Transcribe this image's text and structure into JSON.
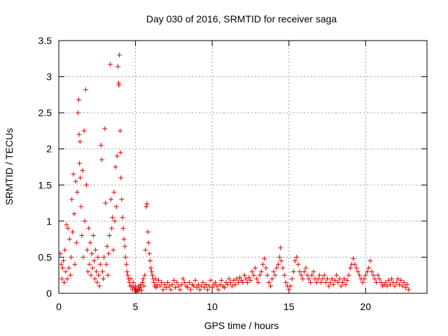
{
  "chart_data": {
    "type": "scatter",
    "title": "Day 030 of 2016, SRMTID for receiver saga",
    "xlabel": "GPS time / hours",
    "ylabel": "SRMTID / TECUs",
    "xlim": [
      0,
      24
    ],
    "ylim": [
      0,
      3.5
    ],
    "xticks": [
      0,
      5,
      10,
      15,
      20
    ],
    "yticks": [
      0,
      0.5,
      1,
      1.5,
      2,
      2.5,
      3,
      3.5
    ],
    "xtick_labels": [
      "0",
      "5",
      "10",
      "15",
      "20"
    ],
    "ytick_labels": [
      "0",
      "0.5",
      "1",
      "1.5",
      "2",
      "2.5",
      "3",
      "3.5"
    ],
    "grid": true,
    "marker": "+",
    "marker_color": "#e00000",
    "series": [
      {
        "name": "SRMTID",
        "points": [
          [
            0.1,
            0.55
          ],
          [
            0.15,
            0.4
          ],
          [
            0.2,
            0.2
          ],
          [
            0.25,
            0.35
          ],
          [
            0.3,
            0.45
          ],
          [
            0.35,
            0.15
          ],
          [
            0.4,
            0.6
          ],
          [
            0.45,
            0.3
          ],
          [
            0.5,
            0.95
          ],
          [
            0.55,
            0.2
          ],
          [
            0.6,
            0.9
          ],
          [
            0.65,
            0.35
          ],
          [
            0.7,
            0.75
          ],
          [
            0.75,
            0.25
          ],
          [
            0.8,
            0.5
          ],
          [
            0.85,
            1.3
          ],
          [
            0.9,
            0.85
          ],
          [
            0.95,
            1.65
          ],
          [
            1.0,
            1.1
          ],
          [
            1.05,
            0.4
          ],
          [
            1.1,
            1.55
          ],
          [
            1.15,
            0.7
          ],
          [
            1.2,
            1.4
          ],
          [
            1.25,
            2.5
          ],
          [
            1.3,
            2.68
          ],
          [
            1.32,
            2.2
          ],
          [
            1.35,
            1.8
          ],
          [
            1.38,
            2.1
          ],
          [
            1.4,
            1.6
          ],
          [
            1.45,
            1.2
          ],
          [
            1.5,
            0.8
          ],
          [
            1.55,
            1.7
          ],
          [
            1.6,
            0.5
          ],
          [
            1.65,
            2.25
          ],
          [
            1.7,
            1.0
          ],
          [
            1.75,
            2.82
          ],
          [
            1.8,
            1.5
          ],
          [
            1.85,
            0.6
          ],
          [
            1.9,
            0.3
          ],
          [
            1.95,
            0.9
          ],
          [
            2.0,
            0.4
          ],
          [
            2.05,
            0.7
          ],
          [
            2.1,
            0.25
          ],
          [
            2.15,
            0.55
          ],
          [
            2.2,
            0.35
          ],
          [
            2.25,
            0.8
          ],
          [
            2.3,
            0.45
          ],
          [
            2.35,
            0.2
          ],
          [
            2.4,
            0.6
          ],
          [
            2.45,
            0.3
          ],
          [
            2.5,
            0.15
          ],
          [
            2.55,
            0.5
          ],
          [
            2.6,
            0.25
          ],
          [
            2.65,
            0.1
          ],
          [
            2.7,
            0.4
          ],
          [
            2.75,
            2.05
          ],
          [
            2.8,
            1.85
          ],
          [
            2.85,
            0.3
          ],
          [
            2.9,
            0.2
          ],
          [
            2.95,
            0.5
          ],
          [
            3.0,
            2.28
          ],
          [
            3.05,
            1.25
          ],
          [
            3.1,
            0.4
          ],
          [
            3.15,
            0.65
          ],
          [
            3.2,
            0.25
          ],
          [
            3.25,
            0.55
          ],
          [
            3.3,
            0.8
          ],
          [
            3.35,
            3.17
          ],
          [
            3.4,
            1.3
          ],
          [
            3.45,
            0.9
          ],
          [
            3.5,
            1.05
          ],
          [
            3.55,
            0.6
          ],
          [
            3.6,
            1.4
          ],
          [
            3.65,
            1.0
          ],
          [
            3.7,
            1.75
          ],
          [
            3.75,
            1.2
          ],
          [
            3.8,
            1.9
          ],
          [
            3.85,
            3.14
          ],
          [
            3.9,
            2.91
          ],
          [
            3.92,
            2.88
          ],
          [
            3.95,
            3.3
          ],
          [
            4.0,
            2.25
          ],
          [
            4.02,
            1.95
          ],
          [
            4.05,
            1.6
          ],
          [
            4.1,
            1.3
          ],
          [
            4.15,
            1.05
          ],
          [
            4.2,
            0.9
          ],
          [
            4.25,
            0.75
          ],
          [
            4.3,
            0.65
          ],
          [
            4.35,
            0.5
          ],
          [
            4.4,
            0.4
          ],
          [
            4.45,
            0.3
          ],
          [
            4.5,
            0.25
          ],
          [
            4.55,
            0.2
          ],
          [
            4.6,
            0.15
          ],
          [
            4.65,
            0.1
          ],
          [
            4.7,
            0.2
          ],
          [
            4.75,
            0.1
          ],
          [
            4.8,
            0.05
          ],
          [
            4.85,
            0.15
          ],
          [
            4.9,
            0.08
          ],
          [
            4.95,
            0.05
          ],
          [
            5.0,
            0.1
          ],
          [
            5.05,
            0.02
          ],
          [
            5.1,
            0.06
          ],
          [
            5.15,
            0.03
          ],
          [
            5.2,
            0.1
          ],
          [
            5.25,
            0.05
          ],
          [
            5.3,
            0.08
          ],
          [
            5.35,
            0.12
          ],
          [
            5.4,
            0.04
          ],
          [
            5.45,
            0.15
          ],
          [
            5.5,
            0.2
          ],
          [
            5.55,
            0.1
          ],
          [
            5.6,
            0.25
          ],
          [
            5.65,
            0.6
          ],
          [
            5.7,
            1.2
          ],
          [
            5.75,
            1.24
          ],
          [
            5.8,
            0.85
          ],
          [
            5.85,
            0.7
          ],
          [
            5.9,
            0.55
          ],
          [
            5.95,
            0.45
          ],
          [
            6.0,
            0.35
          ],
          [
            6.05,
            0.3
          ],
          [
            6.1,
            0.25
          ],
          [
            6.15,
            0.2
          ],
          [
            6.2,
            0.15
          ],
          [
            6.25,
            0.1
          ],
          [
            6.3,
            0.2
          ],
          [
            6.35,
            0.08
          ],
          [
            6.4,
            0.12
          ],
          [
            6.5,
            0.18
          ],
          [
            6.6,
            0.1
          ],
          [
            6.7,
            0.15
          ],
          [
            6.8,
            0.05
          ],
          [
            6.9,
            0.12
          ],
          [
            7.0,
            0.08
          ],
          [
            7.1,
            0.15
          ],
          [
            7.2,
            0.1
          ],
          [
            7.3,
            0.05
          ],
          [
            7.4,
            0.12
          ],
          [
            7.5,
            0.18
          ],
          [
            7.6,
            0.08
          ],
          [
            7.7,
            0.15
          ],
          [
            7.8,
            0.1
          ],
          [
            7.9,
            0.05
          ],
          [
            8.0,
            0.12
          ],
          [
            8.1,
            0.2
          ],
          [
            8.2,
            0.15
          ],
          [
            8.3,
            0.1
          ],
          [
            8.4,
            0.08
          ],
          [
            8.5,
            0.15
          ],
          [
            8.6,
            0.05
          ],
          [
            8.7,
            0.12
          ],
          [
            8.8,
            0.1
          ],
          [
            8.9,
            0.18
          ],
          [
            9.0,
            0.08
          ],
          [
            9.1,
            0.12
          ],
          [
            9.2,
            0.05
          ],
          [
            9.3,
            0.1
          ],
          [
            9.4,
            0.15
          ],
          [
            9.5,
            0.08
          ],
          [
            9.6,
            0.12
          ],
          [
            9.7,
            0.05
          ],
          [
            9.8,
            0.1
          ],
          [
            9.9,
            0.18
          ],
          [
            10.0,
            0.08
          ],
          [
            10.1,
            0.12
          ],
          [
            10.2,
            0.15
          ],
          [
            10.3,
            0.1
          ],
          [
            10.4,
            0.05
          ],
          [
            10.5,
            0.12
          ],
          [
            10.6,
            0.18
          ],
          [
            10.7,
            0.1
          ],
          [
            10.8,
            0.08
          ],
          [
            10.9,
            0.15
          ],
          [
            11.0,
            0.12
          ],
          [
            11.1,
            0.2
          ],
          [
            11.2,
            0.15
          ],
          [
            11.3,
            0.1
          ],
          [
            11.4,
            0.18
          ],
          [
            11.5,
            0.12
          ],
          [
            11.6,
            0.2
          ],
          [
            11.7,
            0.15
          ],
          [
            11.8,
            0.22
          ],
          [
            11.9,
            0.18
          ],
          [
            12.0,
            0.15
          ],
          [
            12.1,
            0.25
          ],
          [
            12.2,
            0.2
          ],
          [
            12.3,
            0.15
          ],
          [
            12.4,
            0.22
          ],
          [
            12.5,
            0.18
          ],
          [
            12.6,
            0.3
          ],
          [
            12.7,
            0.25
          ],
          [
            12.8,
            0.35
          ],
          [
            12.9,
            0.2
          ],
          [
            13.0,
            0.15
          ],
          [
            13.1,
            0.25
          ],
          [
            13.2,
            0.3
          ],
          [
            13.3,
            0.4
          ],
          [
            13.4,
            0.48
          ],
          [
            13.5,
            0.35
          ],
          [
            13.6,
            0.25
          ],
          [
            13.7,
            0.15
          ],
          [
            13.8,
            0.1
          ],
          [
            13.9,
            0.2
          ],
          [
            14.0,
            0.3
          ],
          [
            14.1,
            0.25
          ],
          [
            14.2,
            0.35
          ],
          [
            14.3,
            0.4
          ],
          [
            14.4,
            0.5
          ],
          [
            14.45,
            0.63
          ],
          [
            14.5,
            0.45
          ],
          [
            14.6,
            0.35
          ],
          [
            14.7,
            0.25
          ],
          [
            14.8,
            0.15
          ],
          [
            14.9,
            0.1
          ],
          [
            15.0,
            0.05
          ],
          [
            15.1,
            0.1
          ],
          [
            15.2,
            0.2
          ],
          [
            15.3,
            0.3
          ],
          [
            15.4,
            0.45
          ],
          [
            15.5,
            0.5
          ],
          [
            15.6,
            0.4
          ],
          [
            15.7,
            0.3
          ],
          [
            15.8,
            0.25
          ],
          [
            15.9,
            0.2
          ],
          [
            16.0,
            0.3
          ],
          [
            16.1,
            0.35
          ],
          [
            16.2,
            0.25
          ],
          [
            16.3,
            0.2
          ],
          [
            16.4,
            0.15
          ],
          [
            16.5,
            0.25
          ],
          [
            16.6,
            0.3
          ],
          [
            16.7,
            0.2
          ],
          [
            16.8,
            0.15
          ],
          [
            16.9,
            0.2
          ],
          [
            17.0,
            0.25
          ],
          [
            17.1,
            0.15
          ],
          [
            17.2,
            0.2
          ],
          [
            17.3,
            0.25
          ],
          [
            17.4,
            0.15
          ],
          [
            17.5,
            0.2
          ],
          [
            17.6,
            0.1
          ],
          [
            17.7,
            0.15
          ],
          [
            17.8,
            0.2
          ],
          [
            17.9,
            0.12
          ],
          [
            18.0,
            0.18
          ],
          [
            18.1,
            0.25
          ],
          [
            18.2,
            0.15
          ],
          [
            18.3,
            0.2
          ],
          [
            18.4,
            0.1
          ],
          [
            18.5,
            0.15
          ],
          [
            18.6,
            0.2
          ],
          [
            18.7,
            0.12
          ],
          [
            18.8,
            0.18
          ],
          [
            18.9,
            0.25
          ],
          [
            19.0,
            0.35
          ],
          [
            19.1,
            0.4
          ],
          [
            19.2,
            0.48
          ],
          [
            19.3,
            0.4
          ],
          [
            19.4,
            0.35
          ],
          [
            19.5,
            0.3
          ],
          [
            19.6,
            0.25
          ],
          [
            19.7,
            0.2
          ],
          [
            19.8,
            0.15
          ],
          [
            19.9,
            0.2
          ],
          [
            20.0,
            0.25
          ],
          [
            20.1,
            0.3
          ],
          [
            20.2,
            0.35
          ],
          [
            20.3,
            0.45
          ],
          [
            20.4,
            0.3
          ],
          [
            20.5,
            0.25
          ],
          [
            20.6,
            0.2
          ],
          [
            20.7,
            0.15
          ],
          [
            20.8,
            0.25
          ],
          [
            20.9,
            0.2
          ],
          [
            21.0,
            0.15
          ],
          [
            21.1,
            0.1
          ],
          [
            21.2,
            0.12
          ],
          [
            21.3,
            0.15
          ],
          [
            21.4,
            0.1
          ],
          [
            21.5,
            0.18
          ],
          [
            21.6,
            0.12
          ],
          [
            21.7,
            0.2
          ],
          [
            21.8,
            0.15
          ],
          [
            21.9,
            0.1
          ],
          [
            22.0,
            0.15
          ],
          [
            22.1,
            0.2
          ],
          [
            22.2,
            0.12
          ],
          [
            22.3,
            0.18
          ],
          [
            22.4,
            0.1
          ],
          [
            22.5,
            0.15
          ],
          [
            22.6,
            0.08
          ],
          [
            22.7,
            0.12
          ],
          [
            22.8,
            0.05
          ]
        ]
      }
    ]
  }
}
